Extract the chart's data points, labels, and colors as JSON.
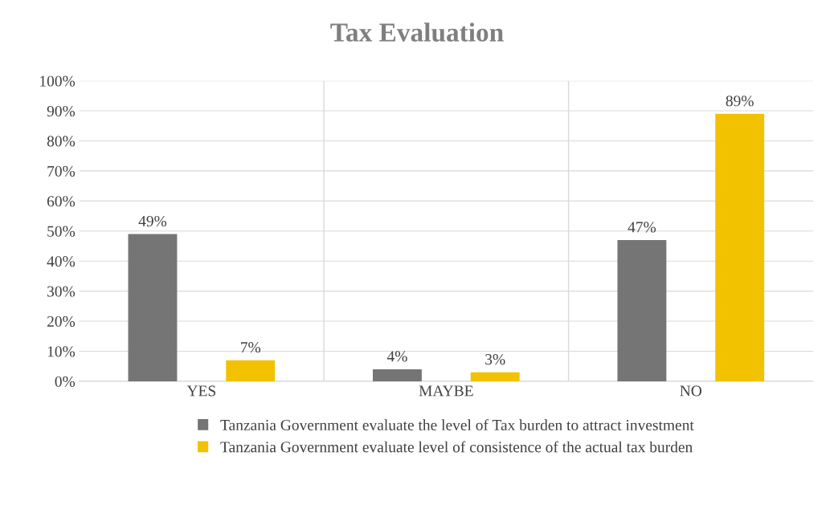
{
  "chart_data": {
    "type": "bar",
    "title": "Tax Evaluation",
    "categories": [
      "YES",
      "MAYBE",
      "NO"
    ],
    "series": [
      {
        "name": "Tanzania Government evaluate the level of Tax burden to attract investment",
        "color": "#757575",
        "values": [
          49,
          4,
          47
        ],
        "value_labels": [
          "49%",
          "4%",
          "47%"
        ]
      },
      {
        "name": "Tanzania Government evaluate level of consistence of the actual tax burden",
        "color": "#f2c100",
        "values": [
          7,
          3,
          89
        ],
        "value_labels": [
          "7%",
          "3%",
          "89%"
        ]
      }
    ],
    "ylim": [
      0,
      100
    ],
    "yticks": [
      {
        "value": 0,
        "label": "0%"
      },
      {
        "value": 10,
        "label": "10%"
      },
      {
        "value": 20,
        "label": "20%"
      },
      {
        "value": 30,
        "label": "30%"
      },
      {
        "value": 40,
        "label": "40%"
      },
      {
        "value": 50,
        "label": "50%"
      },
      {
        "value": 60,
        "label": "60%"
      },
      {
        "value": 70,
        "label": "70%"
      },
      {
        "value": 80,
        "label": "80%"
      },
      {
        "value": 90,
        "label": "90%"
      },
      {
        "value": 100,
        "label": "100%"
      }
    ],
    "grid": "y",
    "legend": "bottom"
  }
}
